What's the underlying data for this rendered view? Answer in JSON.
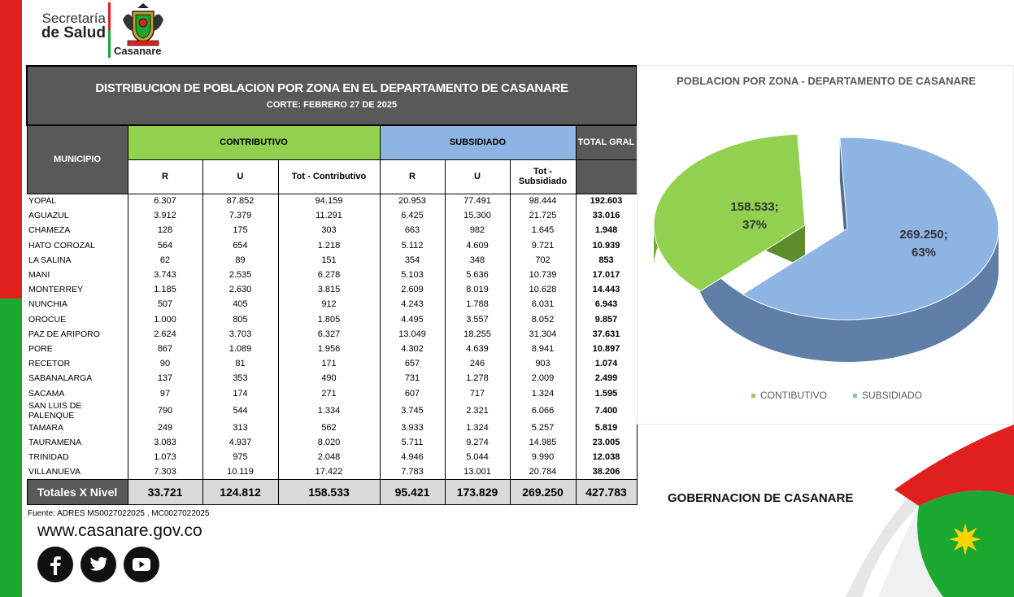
{
  "header": {
    "salud_line1": "Secretaría",
    "salud_line2": "de Salud",
    "shield_text": "Casanare"
  },
  "table": {
    "title": "DISTRIBUCION DE POBLACION POR ZONA EN EL DEPARTAMENTO DE CASANARE",
    "subtitle": "CORTE:  FEBRERO 27 DE 2025",
    "col_municipio": "MUNICIPIO",
    "group_contrib": "CONTRIBUTIVO",
    "group_subs": "SUBSIDIADO",
    "col_total": "TOTAL GRAL",
    "sub_headers": [
      "R",
      "U",
      "Tot - Contributivo",
      "R",
      "U",
      "Tot - Subsidiado"
    ],
    "rows": [
      [
        "YOPAL",
        "6.307",
        "87.852",
        "94.159",
        "20.953",
        "77.491",
        "98.444",
        "192.603"
      ],
      [
        "AGUAZUL",
        "3.912",
        "7.379",
        "11.291",
        "6.425",
        "15.300",
        "21.725",
        "33.016"
      ],
      [
        "CHAMEZA",
        "128",
        "175",
        "303",
        "663",
        "982",
        "1.645",
        "1.948"
      ],
      [
        "HATO COROZAL",
        "564",
        "654",
        "1.218",
        "5.112",
        "4.609",
        "9.721",
        "10.939"
      ],
      [
        "LA SALINA",
        "62",
        "89",
        "151",
        "354",
        "348",
        "702",
        "853"
      ],
      [
        "MANI",
        "3.743",
        "2.535",
        "6.278",
        "5.103",
        "5.636",
        "10.739",
        "17.017"
      ],
      [
        "MONTERREY",
        "1.185",
        "2.630",
        "3.815",
        "2.609",
        "8.019",
        "10.628",
        "14.443"
      ],
      [
        "NUNCHIA",
        "507",
        "405",
        "912",
        "4.243",
        "1.788",
        "6.031",
        "6.943"
      ],
      [
        "OROCUE",
        "1.000",
        "805",
        "1.805",
        "4.495",
        "3.557",
        "8.052",
        "9.857"
      ],
      [
        "PAZ DE ARIPORO",
        "2.624",
        "3.703",
        "6.327",
        "13.049",
        "18.255",
        "31.304",
        "37.631"
      ],
      [
        "PORE",
        "867",
        "1.089",
        "1.956",
        "4.302",
        "4.639",
        "8.941",
        "10.897"
      ],
      [
        "RECETOR",
        "90",
        "81",
        "171",
        "657",
        "246",
        "903",
        "1.074"
      ],
      [
        "SABANALARGA",
        "137",
        "353",
        "490",
        "731",
        "1.278",
        "2.009",
        "2.499"
      ],
      [
        "SACAMA",
        "97",
        "174",
        "271",
        "607",
        "717",
        "1.324",
        "1.595"
      ],
      [
        "SAN LUIS DE PALENQUE",
        "790",
        "544",
        "1.334",
        "3.745",
        "2.321",
        "6.066",
        "7.400"
      ],
      [
        "TAMARA",
        "249",
        "313",
        "562",
        "3.933",
        "1.324",
        "5.257",
        "5.819"
      ],
      [
        "TAURAMENA",
        "3.083",
        "4.937",
        "8.020",
        "5.711",
        "9.274",
        "14.985",
        "23.005"
      ],
      [
        "TRINIDAD",
        "1.073",
        "975",
        "2.048",
        "4.946",
        "5.044",
        "9.990",
        "12.038"
      ],
      [
        "VILLANUEVA",
        "7.303",
        "10.119",
        "17.422",
        "7.783",
        "13.001",
        "20.784",
        "38.206"
      ]
    ],
    "totals": [
      "Totales X Nivel",
      "33.721",
      "124.812",
      "158.533",
      "95.421",
      "173.829",
      "269.250",
      "427.783"
    ]
  },
  "source": "Fuente: ADRES MS0027022025 ,  MC0027022025",
  "website": "www.casanare.gov.co",
  "social_icons": [
    "facebook-icon",
    "twitter-icon",
    "youtube-icon"
  ],
  "chart_data": {
    "type": "pie",
    "title": "POBLACION POR ZONA -  DEPARTAMENTO DE CASANARE",
    "slices": [
      {
        "name": "CONTIBUTIVO",
        "value": 158533,
        "label": "158.533;",
        "pct": "37%",
        "color": "#92d050"
      },
      {
        "name": "SUBSIDIADO",
        "value": 269250,
        "label": "269.250;",
        "pct": "63%",
        "color": "#8eb4e3"
      }
    ],
    "legend_position": "bottom"
  },
  "footer": {
    "gobernacion": "GOBERNACION DE CASANARE"
  },
  "colors": {
    "red": "#e01f1f",
    "green": "#1aa831",
    "contrib": "#92d050",
    "subs": "#8eb4e3",
    "header_gray": "#595959"
  }
}
